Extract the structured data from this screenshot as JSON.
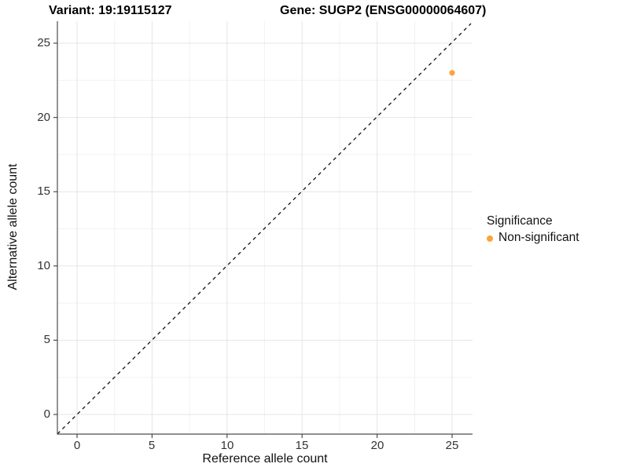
{
  "title": {
    "variant": "Variant: 19:19115127",
    "gene": "Gene: SUGP2 (ENSG00000064607)"
  },
  "chart_data": {
    "type": "scatter",
    "title_left": "Variant: 19:19115127",
    "title_right": "Gene: SUGP2 (ENSG00000064607)",
    "xlabel": "Reference allele count",
    "ylabel": "Alternative allele count",
    "xlim": [
      0,
      25
    ],
    "ylim": [
      0,
      25
    ],
    "xticks": [
      "0",
      "5",
      "10",
      "15",
      "20",
      "25"
    ],
    "yticks": [
      "0",
      "5",
      "10",
      "15",
      "20",
      "25"
    ],
    "grid": "major and minor (2.5 steps), light gray on white",
    "points": [
      {
        "x": 25,
        "y": 23,
        "series": "Non-significant"
      }
    ],
    "point_color": "#FAA43A",
    "reference_line": {
      "type": "identity y=x",
      "style": "dashed",
      "color": "#111111"
    },
    "legend_position": "right"
  },
  "legend": {
    "title": "Significance",
    "items": [
      {
        "label": "Non-significant",
        "color": "#FAA43A"
      }
    ]
  }
}
